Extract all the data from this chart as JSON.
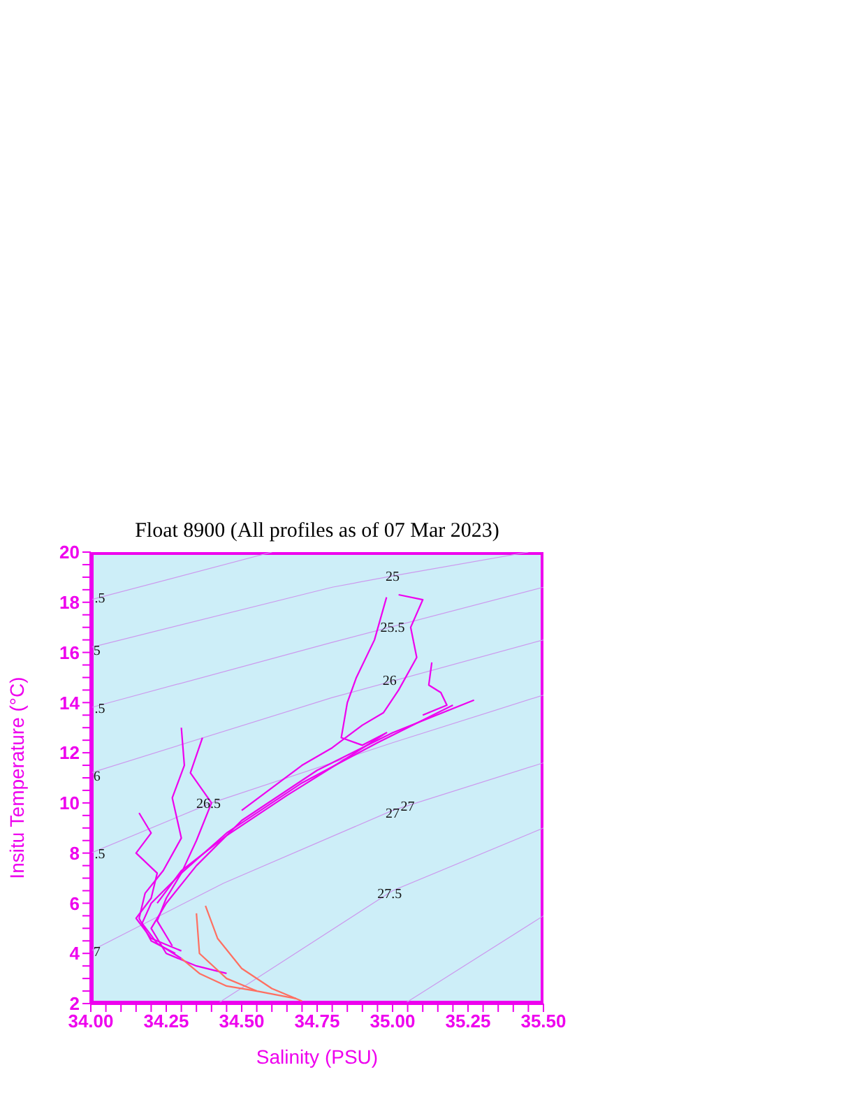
{
  "chart_data": {
    "type": "line",
    "title": "Float 8900  (All profiles as of 07 Mar 2023)",
    "xlabel": "Salinity (PSU)",
    "ylabel": "Insitu Temperature (°C)",
    "xlim": [
      34.0,
      35.5
    ],
    "xticks": [
      {
        "value": 34,
        "label": "34.00"
      },
      {
        "value": 34.05,
        "label": null
      },
      {
        "value": 34.1,
        "label": null
      },
      {
        "value": 34.15,
        "label": null
      },
      {
        "value": 34.2,
        "label": null
      },
      {
        "value": 34.25,
        "label": "34.25"
      },
      {
        "value": 34.3,
        "label": null
      },
      {
        "value": 34.35,
        "label": null
      },
      {
        "value": 34.4,
        "label": null
      },
      {
        "value": 34.45,
        "label": null
      },
      {
        "value": 34.5,
        "label": "34.50"
      },
      {
        "value": 34.55,
        "label": null
      },
      {
        "value": 34.6,
        "label": null
      },
      {
        "value": 34.65,
        "label": null
      },
      {
        "value": 34.7,
        "label": null
      },
      {
        "value": 34.75,
        "label": "34.75"
      },
      {
        "value": 34.8,
        "label": null
      },
      {
        "value": 34.85,
        "label": null
      },
      {
        "value": 34.9,
        "label": null
      },
      {
        "value": 34.95,
        "label": null
      },
      {
        "value": 35,
        "label": "35.00"
      },
      {
        "value": 35.05,
        "label": null
      },
      {
        "value": 35.1,
        "label": null
      },
      {
        "value": 35.15,
        "label": null
      },
      {
        "value": 35.2,
        "label": null
      },
      {
        "value": 35.25,
        "label": "35.25"
      },
      {
        "value": 35.3,
        "label": null
      },
      {
        "value": 35.35,
        "label": null
      },
      {
        "value": 35.4,
        "label": null
      },
      {
        "value": 35.45,
        "label": null
      },
      {
        "value": 35.5,
        "label": "35.50"
      }
    ],
    "ylim": [
      2,
      20
    ],
    "yticks": [
      2,
      {
        "value": 2.5,
        "label": null
      },
      {
        "value": 3,
        "label": null
      },
      {
        "value": 3.5,
        "label": null
      },
      4,
      {
        "value": 4.5,
        "label": null
      },
      {
        "value": 5,
        "label": null
      },
      {
        "value": 5.5,
        "label": null
      },
      6,
      {
        "value": 6.5,
        "label": null
      },
      {
        "value": 7,
        "label": null
      },
      {
        "value": 7.5,
        "label": null
      },
      8,
      {
        "value": 8.5,
        "label": null
      },
      {
        "value": 9,
        "label": null
      },
      {
        "value": 9.5,
        "label": null
      },
      10,
      {
        "value": 10.5,
        "label": null
      },
      {
        "value": 11,
        "label": null
      },
      {
        "value": 11.5,
        "label": null
      },
      12,
      {
        "value": 12.5,
        "label": null
      },
      {
        "value": 13,
        "label": null
      },
      {
        "value": 13.5,
        "label": null
      },
      14,
      {
        "value": 14.5,
        "label": null
      },
      {
        "value": 15,
        "label": null
      },
      {
        "value": 15.5,
        "label": null
      },
      16,
      {
        "value": 16.5,
        "label": null
      },
      {
        "value": 17,
        "label": null
      },
      {
        "value": 17.5,
        "label": null
      },
      18,
      {
        "value": 18.5,
        "label": null
      },
      {
        "value": 19,
        "label": null
      },
      {
        "value": 19.5,
        "label": null
      },
      20
    ],
    "series": [
      {
        "color": "#cc99ee",
        "x": [
          34.0,
          34.6
        ],
        "values": [
          18.1,
          20
        ]
      },
      {
        "color": "#cc99ee",
        "x": [
          34.0,
          34.8,
          35.0,
          35.45
        ],
        "values": [
          16.2,
          18.6,
          19.05,
          20
        ]
      },
      {
        "color": "#cc99ee",
        "x": [
          34.0,
          34.8,
          35.5
        ],
        "values": [
          13.8,
          16.4,
          18.6
        ]
      },
      {
        "color": "#cc99ee",
        "x": [
          34.0,
          34.8,
          35.5
        ],
        "values": [
          11.2,
          14.2,
          16.5
        ]
      },
      {
        "color": "#cc99ee",
        "x": [
          34.0,
          34.4,
          35.0,
          35.5
        ],
        "values": [
          8.0,
          10.0,
          12.4,
          14.3
        ]
      },
      {
        "color": "#cc99ee",
        "x": [
          34.0,
          34.44,
          35.0,
          35.5
        ],
        "values": [
          4.1,
          6.8,
          9.7,
          11.6
        ]
      },
      {
        "color": "#cc99ee",
        "x": [
          34.42,
          35.0,
          35.5
        ],
        "values": [
          2.0,
          6.5,
          9.0
        ]
      },
      {
        "color": "#cc99ee",
        "x": [
          35.04,
          35.5
        ],
        "values": [
          2.0,
          5.5
        ]
      },
      {
        "color": "#ee00ee",
        "x": [
          35.27,
          35.0,
          34.75,
          34.5,
          34.35,
          34.25,
          34.2,
          34.25,
          34.35,
          34.45
        ],
        "values": [
          14.1,
          12.8,
          11.3,
          9.3,
          7.5,
          6.0,
          5.0,
          4.0,
          3.5,
          3.2
        ]
      },
      {
        "color": "#ee00ee",
        "x": [
          35.2,
          34.95,
          34.7,
          34.45,
          34.3,
          34.2,
          34.17,
          34.22,
          34.3
        ],
        "values": [
          13.9,
          12.4,
          10.8,
          8.8,
          7.2,
          6.0,
          5.2,
          4.4,
          3.8
        ]
      },
      {
        "color": "#ee00ee",
        "x": [
          34.3,
          34.31,
          34.27,
          34.3,
          34.24,
          34.18,
          34.16,
          34.2,
          34.28
        ],
        "values": [
          13.0,
          11.5,
          10.2,
          8.6,
          7.3,
          6.4,
          5.4,
          4.5,
          4.0
        ]
      },
      {
        "color": "#ee00ee",
        "x": [
          34.16,
          34.2,
          34.15,
          34.22,
          34.2,
          34.15,
          34.2,
          34.3
        ],
        "values": [
          9.6,
          8.8,
          8.0,
          7.2,
          6.2,
          5.4,
          4.6,
          4.1
        ]
      },
      {
        "color": "#ee00ee",
        "x": [
          34.37,
          34.33,
          34.4,
          34.35,
          34.3,
          34.25,
          34.22,
          34.27
        ],
        "values": [
          12.6,
          11.2,
          10.0,
          8.5,
          7.2,
          6.2,
          5.3,
          4.3
        ]
      },
      {
        "color": "#ee00ee",
        "x": [
          34.98,
          34.94,
          34.88,
          34.85,
          34.83,
          34.9,
          34.98,
          34.85,
          34.65,
          34.45,
          34.3,
          34.22
        ],
        "values": [
          18.2,
          16.5,
          15.0,
          14.0,
          12.6,
          12.3,
          12.8,
          11.8,
          10.3,
          8.7,
          7.3,
          6.0
        ]
      },
      {
        "color": "#ee00ee",
        "x": [
          35.02,
          35.1,
          35.06,
          35.08,
          35.02,
          34.97,
          34.9,
          34.8,
          34.7,
          34.5
        ],
        "values": [
          18.3,
          18.1,
          17.0,
          15.8,
          14.5,
          13.6,
          13.1,
          12.2,
          11.5,
          9.7
        ]
      },
      {
        "color": "#ee00ee",
        "x": [
          35.13,
          35.12,
          35.16,
          35.18,
          35.1
        ],
        "values": [
          15.6,
          14.7,
          14.4,
          13.9,
          13.5
        ]
      },
      {
        "color": "#ff6f61",
        "x": [
          34.38,
          34.42,
          34.5,
          34.6,
          34.7
        ],
        "values": [
          5.9,
          4.6,
          3.4,
          2.6,
          2.1
        ]
      },
      {
        "color": "#ff6f61",
        "x": [
          34.35,
          34.36,
          34.45,
          34.55,
          34.68
        ],
        "values": [
          5.6,
          4.0,
          3.0,
          2.5,
          2.2
        ]
      },
      {
        "color": "#ff6f61",
        "x": [
          34.3,
          34.36,
          34.45,
          34.55
        ],
        "values": [
          3.8,
          3.2,
          2.7,
          2.5
        ]
      }
    ],
    "annotations": [
      {
        "text": "25",
        "x": 35.0,
        "y": 19.05
      },
      {
        "text": "25.5",
        "x": 35.0,
        "y": 17.03
      },
      {
        "text": "26",
        "x": 34.99,
        "y": 14.9
      },
      {
        "text": "26.5",
        "x": 34.39,
        "y": 10.0
      },
      {
        "text": "27",
        "x": 35.0,
        "y": 9.6
      },
      {
        "text": "27",
        "x": 35.05,
        "y": 9.9
      },
      {
        "text": "27.5",
        "x": 34.99,
        "y": 6.4
      },
      {
        "text": ".5",
        "x": 34.03,
        "y": 18.2
      },
      {
        "text": "5",
        "x": 34.02,
        "y": 16.1
      },
      {
        "text": ".5",
        "x": 34.03,
        "y": 13.8
      },
      {
        "text": "6",
        "x": 34.02,
        "y": 11.1
      },
      {
        "text": ".5",
        "x": 34.03,
        "y": 8.0
      },
      {
        "text": "7",
        "x": 34.02,
        "y": 4.1
      }
    ]
  }
}
